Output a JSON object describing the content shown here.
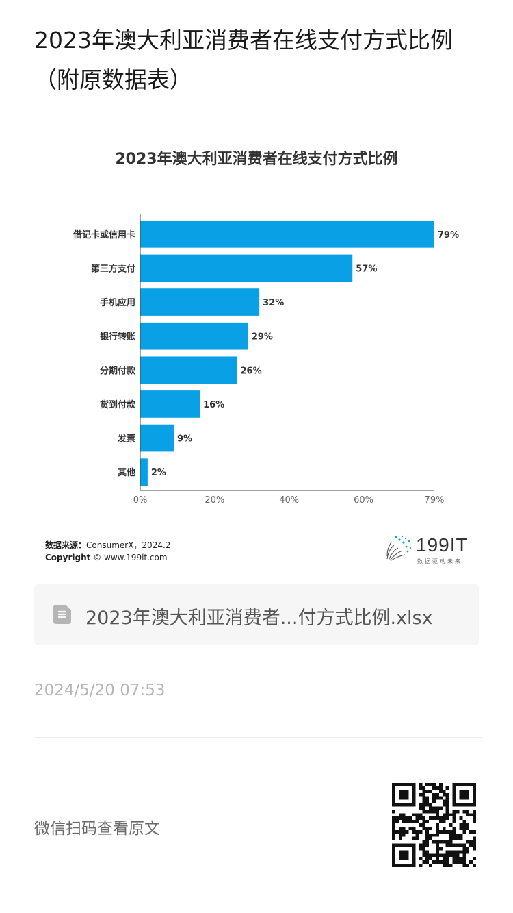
{
  "article": {
    "title": "2023年澳大利亚消费者在线支付方式比例（附原数据表）"
  },
  "chart_data": {
    "type": "bar",
    "orientation": "horizontal",
    "title": "2023年澳大利亚消费者在线支付方式比例",
    "categories": [
      "借记卡或信用卡",
      "第三方支付",
      "手机应用",
      "银行转账",
      "分期付款",
      "货到付款",
      "发票",
      "其他"
    ],
    "values": [
      79,
      57,
      32,
      29,
      26,
      16,
      9,
      2
    ],
    "value_labels": [
      "79%",
      "57%",
      "32%",
      "29%",
      "26%",
      "16%",
      "9%",
      "2%"
    ],
    "x_ticks": [
      0,
      20,
      40,
      60,
      79
    ],
    "x_tick_labels": [
      "0%",
      "20%",
      "40%",
      "60%",
      "79%"
    ],
    "xlim": [
      0,
      79
    ],
    "xlabel": "",
    "ylabel": "",
    "grid": false,
    "bar_color": "#0aa0e6"
  },
  "source": {
    "label": "数据来源：",
    "text": "ConsumerX，2024.2",
    "copyright_label": "Copyright",
    "copyright_text": "© www.199it.com"
  },
  "logo": {
    "text": "199IT",
    "tagline": "数据驱动未来"
  },
  "file": {
    "icon": "spreadsheet-file-icon",
    "name": "2023年澳大利亚消费者...付方式比例.xlsx"
  },
  "timestamp": "2024/5/20 07:53",
  "footer": {
    "scan_text": "微信扫码查看原文",
    "qr_icon": "qr-code-icon"
  }
}
